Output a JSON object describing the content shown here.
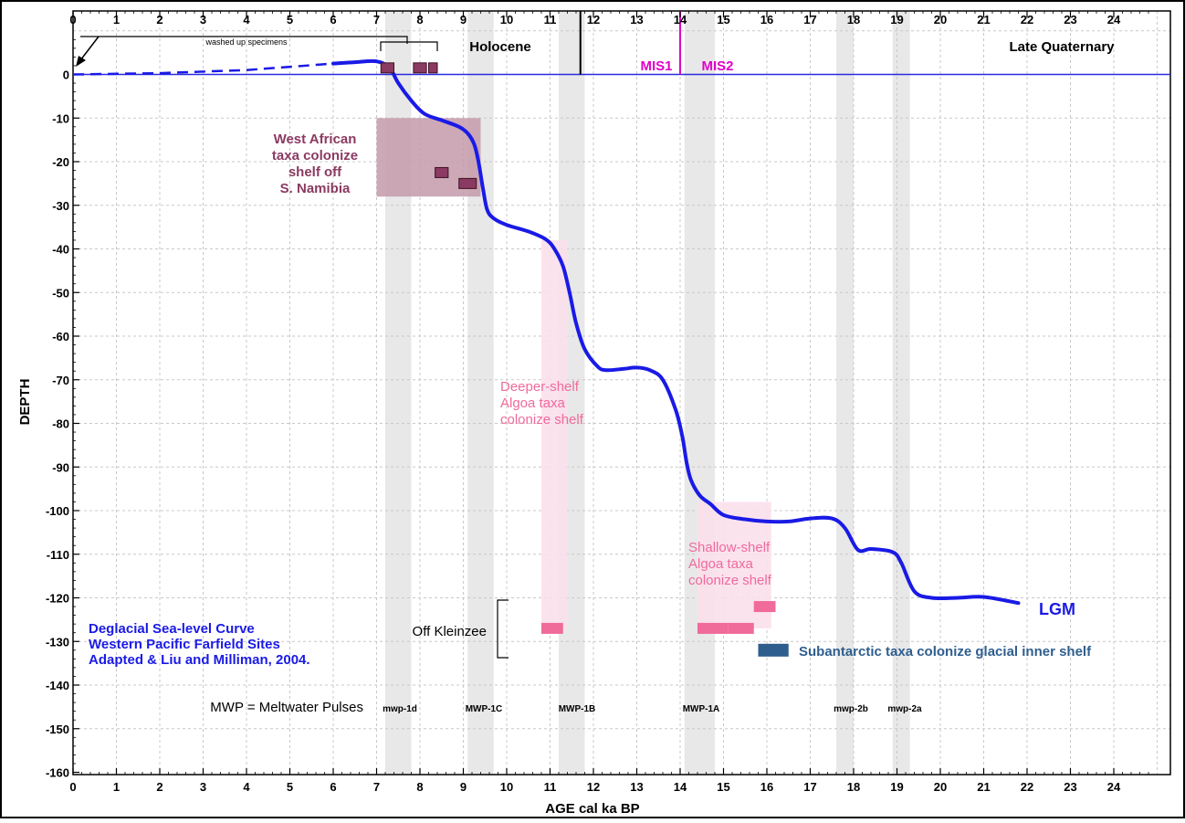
{
  "chart_data": {
    "type": "line",
    "xlabel": "AGE cal ka BP",
    "ylabel": "DEPTH",
    "xlim": [
      0,
      25
    ],
    "ylim": [
      -160,
      10
    ],
    "x_ticks": [
      "0",
      "1",
      "2",
      "3",
      "4",
      "5",
      "6",
      "7",
      "8",
      "9",
      "10",
      "11",
      "12",
      "13",
      "14",
      "15",
      "16",
      "17",
      "18",
      "19",
      "20",
      "21",
      "22",
      "23",
      "24"
    ],
    "y_ticks": [
      "0",
      "-10",
      "-20",
      "-30",
      "-40",
      "-50",
      "-60",
      "-70",
      "-80",
      "-90",
      "-100",
      "-110",
      "-120",
      "-130",
      "-140",
      "-150",
      "-160"
    ],
    "grid": true,
    "colors": {
      "curve": "#1a1ae6",
      "zero_line": "#2a2ae0",
      "mis": "#e000c8",
      "west_african": "#8b3a62",
      "west_african_box": "#c49aab",
      "algoa": "#f06a9a",
      "algoa_band": "#fbe0ec",
      "subantarctic": "#2e5e8e",
      "meltwater_band": "#e8e8e8",
      "legend_text": "#1a1ae6"
    },
    "series": [
      {
        "points": [
          [
            6.0,
            2.5
          ],
          [
            6.5,
            2.8
          ],
          [
            7.0,
            3.0
          ],
          [
            7.3,
            1.5
          ],
          [
            7.5,
            -2
          ],
          [
            7.8,
            -6
          ],
          [
            8.1,
            -9
          ],
          [
            8.5,
            -10.5
          ],
          [
            8.9,
            -12
          ],
          [
            9.1,
            -13.5
          ],
          [
            9.25,
            -16
          ],
          [
            9.35,
            -20
          ],
          [
            9.45,
            -26
          ],
          [
            9.55,
            -31
          ],
          [
            9.7,
            -33
          ],
          [
            10.0,
            -34.5
          ],
          [
            10.5,
            -36
          ],
          [
            10.9,
            -37.8
          ],
          [
            11.1,
            -40
          ],
          [
            11.3,
            -44
          ],
          [
            11.45,
            -50
          ],
          [
            11.6,
            -57
          ],
          [
            11.8,
            -63
          ],
          [
            12.1,
            -67
          ],
          [
            12.3,
            -67.8
          ],
          [
            12.7,
            -67.5
          ],
          [
            13.0,
            -67.2
          ],
          [
            13.3,
            -67.8
          ],
          [
            13.6,
            -70
          ],
          [
            13.9,
            -77
          ],
          [
            14.05,
            -83
          ],
          [
            14.15,
            -89
          ],
          [
            14.25,
            -93
          ],
          [
            14.45,
            -96.5
          ],
          [
            14.7,
            -98.5
          ],
          [
            15.0,
            -101
          ],
          [
            15.5,
            -102
          ],
          [
            16.0,
            -102.5
          ],
          [
            16.5,
            -102.5
          ],
          [
            17.0,
            -101.8
          ],
          [
            17.5,
            -101.8
          ],
          [
            17.8,
            -104
          ],
          [
            18.1,
            -109
          ],
          [
            18.4,
            -108.8
          ],
          [
            18.9,
            -109.5
          ],
          [
            19.1,
            -112
          ],
          [
            19.4,
            -118.5
          ],
          [
            19.8,
            -120
          ],
          [
            20.4,
            -120
          ],
          [
            21.0,
            -119.8
          ],
          [
            21.8,
            -121.2
          ]
        ],
        "dashed_points": [
          [
            0,
            0
          ],
          [
            2,
            0.3
          ],
          [
            4,
            1
          ],
          [
            6,
            2.5
          ],
          [
            7,
            3.2
          ]
        ]
      }
    ],
    "meltwater_pulses": [
      {
        "label": "mwp-1d",
        "x_range": [
          7.2,
          7.8
        ]
      },
      {
        "label": "MWP-1C",
        "x_range": [
          9.1,
          9.7
        ]
      },
      {
        "label": "MWP-1B",
        "x_range": [
          11.2,
          11.8
        ]
      },
      {
        "label": "MWP-1A",
        "x_range": [
          14.1,
          14.8
        ]
      },
      {
        "label": "mwp-2b",
        "x_range": [
          17.6,
          18.0
        ]
      },
      {
        "label": "mwp-2a",
        "x_range": [
          18.9,
          19.3
        ]
      }
    ],
    "shaded_regions": [
      {
        "kind": "west_african",
        "x_range": [
          7.0,
          9.4
        ],
        "y_range": [
          -28,
          -10
        ]
      },
      {
        "kind": "algoa_deep",
        "x_range": [
          10.8,
          11.4
        ],
        "y_range": [
          -127,
          -38
        ]
      },
      {
        "kind": "algoa_shallow",
        "x_range": [
          14.4,
          16.1
        ],
        "y_range": [
          -127,
          -98
        ]
      }
    ],
    "specimen_markers": [
      {
        "kind": "west_african",
        "x": 7.1,
        "y": 1.5,
        "w": 0.3
      },
      {
        "kind": "west_african",
        "x": 7.85,
        "y": 1.5,
        "w": 0.3
      },
      {
        "kind": "west_african",
        "x": 8.2,
        "y": 1.5,
        "w": 0.2
      },
      {
        "kind": "west_african",
        "x": 8.35,
        "y": -22.5,
        "w": 0.3
      },
      {
        "kind": "west_african",
        "x": 8.9,
        "y": -25,
        "w": 0.4
      },
      {
        "kind": "algoa",
        "x": 10.8,
        "y": -127,
        "w": 0.5
      },
      {
        "kind": "algoa",
        "x": 14.4,
        "y": -127,
        "w": 0.7
      },
      {
        "kind": "algoa",
        "x": 15.1,
        "y": -127,
        "w": 0.6
      },
      {
        "kind": "algoa",
        "x": 15.7,
        "y": -122,
        "w": 0.5
      },
      {
        "kind": "subantarctic",
        "x": 15.8,
        "y": -132,
        "w": 0.7
      }
    ],
    "annotations": {
      "holocene": "Holocene",
      "late_quaternary": "Late Quaternary",
      "mis1": "MIS1",
      "mis2": "MIS2",
      "washed_up": "washed up specimens",
      "west_african": [
        "West African",
        "taxa colonize",
        "shelf off",
        "S. Namibia"
      ],
      "deeper_shelf": [
        "Deeper-shelf",
        "Algoa taxa",
        "colonize shelf"
      ],
      "shallow_shelf": [
        "Shallow-shelf",
        "Algoa taxa",
        "colonize shelf"
      ],
      "lgm": "LGM",
      "off_kleinzee": "Off Kleinzee",
      "subantarctic": "Subantarctic taxa colonize glacial inner shelf",
      "mwp_legend": "MWP = Meltwater Pulses",
      "curve_title": [
        "Deglacial Sea-level Curve",
        "Western Pacific Farfield Sites",
        "Adapted & Liu and Milliman, 2004."
      ]
    }
  }
}
